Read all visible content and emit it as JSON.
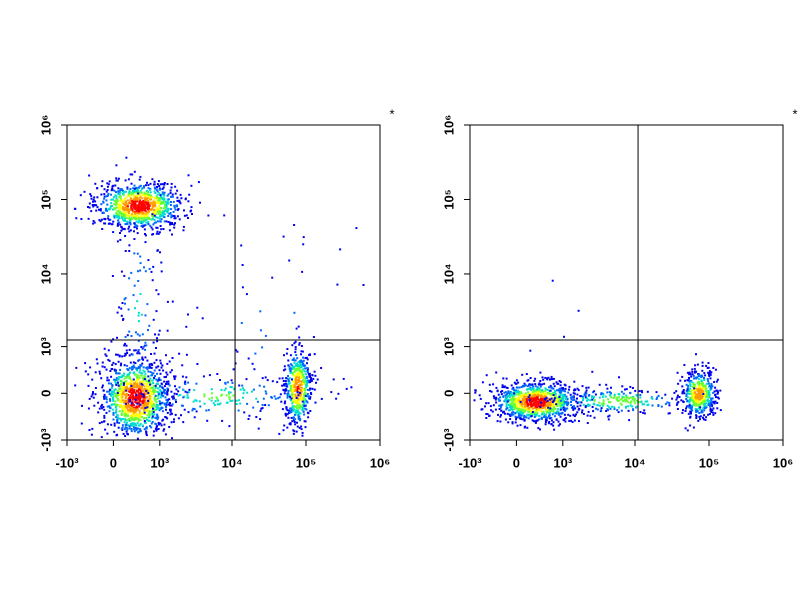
{
  "chart_data": [
    {
      "type": "density",
      "annotation": "*",
      "xlim": [
        -1000,
        1000000
      ],
      "ylim": [
        -1000,
        1000000
      ],
      "xticks": [
        {
          "value": -1000,
          "label": "-10³"
        },
        0,
        {
          "value": 1000,
          "label": "10³"
        },
        {
          "value": 10000,
          "label": "10⁴"
        },
        {
          "value": 100000,
          "label": "10⁵"
        },
        {
          "value": 1000000,
          "label": "10⁶"
        }
      ],
      "yticks": [
        {
          "value": -1000,
          "label": "-10³"
        },
        0,
        {
          "value": 1000,
          "label": "10³"
        },
        {
          "value": 10000,
          "label": "10⁴"
        },
        {
          "value": 100000,
          "label": "10⁵"
        },
        {
          "value": 1000000,
          "label": "10⁶"
        }
      ],
      "gate": {
        "x": 11000,
        "y": 1250
      }
    },
    {
      "type": "density",
      "annotation": "*",
      "xlim": [
        -1000,
        1000000
      ],
      "ylim": [
        -1000,
        1000000
      ],
      "xticks": [
        {
          "value": -1000,
          "label": "-10³"
        },
        0,
        {
          "value": 1000,
          "label": "10³"
        },
        {
          "value": 10000,
          "label": "10⁴"
        },
        {
          "value": 100000,
          "label": "10⁵"
        },
        {
          "value": 1000000,
          "label": "10⁶"
        }
      ],
      "yticks": [
        {
          "value": -1000,
          "label": "-10³"
        },
        0,
        {
          "value": 1000,
          "label": "10³"
        },
        {
          "value": 10000,
          "label": "10⁴"
        },
        {
          "value": 100000,
          "label": "10⁵"
        },
        {
          "value": 1000000,
          "label": "10⁶"
        }
      ],
      "gate": {
        "x": 11000,
        "y": 1250
      }
    }
  ]
}
